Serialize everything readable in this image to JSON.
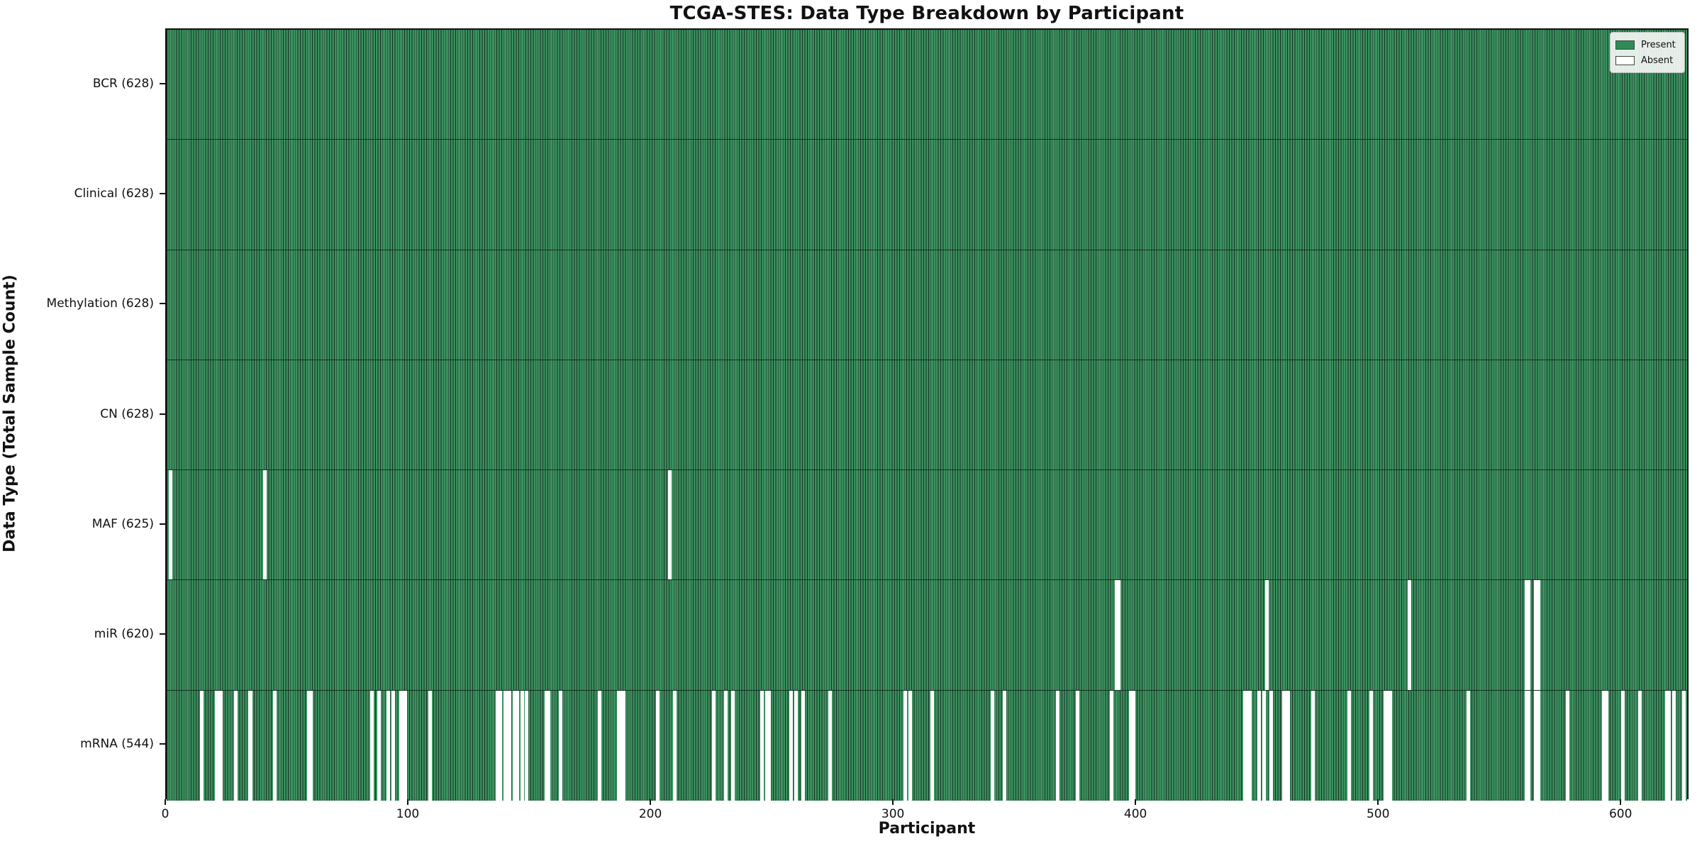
{
  "figure": {
    "title": "TCGA-STES: Data Type Breakdown by Participant",
    "xlabel": "Participant",
    "ylabel": "Data Type (Total Sample Count)"
  },
  "legend": {
    "items": [
      {
        "label": "Present",
        "color": "#2e8b57"
      },
      {
        "label": "Absent",
        "color": "#ffffff"
      }
    ]
  },
  "chart_data": {
    "type": "heatmap",
    "title": "TCGA-STES: Data Type Breakdown by Participant",
    "xlabel": "Participant",
    "ylabel": "Data Type (Total Sample Count)",
    "legend_entries": [
      "Present",
      "Absent"
    ],
    "legend_position": "upper right",
    "grid": false,
    "n_participants": 628,
    "x_ticks": [
      0,
      100,
      200,
      300,
      400,
      500,
      600
    ],
    "xlim": [
      0,
      628
    ],
    "colors": {
      "present": "#2e8b57",
      "present_fill": "#3c9160",
      "bar_edge": "#14301f",
      "absent": "#ffffff",
      "axis": "#111111"
    },
    "rows": [
      {
        "name": "BCR",
        "label": "BCR (628)",
        "present_count": 628,
        "absent_participants": []
      },
      {
        "name": "Clinical",
        "label": "Clinical (628)",
        "present_count": 628,
        "absent_participants": []
      },
      {
        "name": "Methylation",
        "label": "Methylation (628)",
        "present_count": 628,
        "absent_participants": []
      },
      {
        "name": "CN",
        "label": "CN (628)",
        "present_count": 628,
        "absent_participants": []
      },
      {
        "name": "MAF",
        "label": "MAF (625)",
        "present_count": 625,
        "absent_participants": [
          1,
          40,
          207
        ]
      },
      {
        "name": "miR",
        "label": "miR (620)",
        "present_count": 620,
        "absent_participants": [
          391,
          392,
          453,
          512,
          560,
          561,
          564,
          565
        ]
      },
      {
        "name": "mRNA",
        "label": "mRNA (544)",
        "present_count": 544,
        "absent_participants": [
          14,
          20,
          21,
          22,
          28,
          34,
          44,
          58,
          59,
          84,
          87,
          91,
          93,
          96,
          97,
          98,
          108,
          136,
          137,
          139,
          140,
          141,
          143,
          144,
          146,
          148,
          156,
          157,
          162,
          178,
          186,
          187,
          188,
          202,
          209,
          225,
          230,
          233,
          245,
          247,
          248,
          257,
          259,
          262,
          273,
          304,
          306,
          315,
          340,
          345,
          367,
          375,
          389,
          397,
          398,
          444,
          445,
          446,
          450,
          452,
          455,
          460,
          461,
          462,
          472,
          487,
          496,
          502,
          503,
          504,
          536,
          560,
          561,
          564,
          565,
          577,
          592,
          593,
          600,
          607,
          618,
          619,
          621,
          625
        ]
      }
    ]
  }
}
